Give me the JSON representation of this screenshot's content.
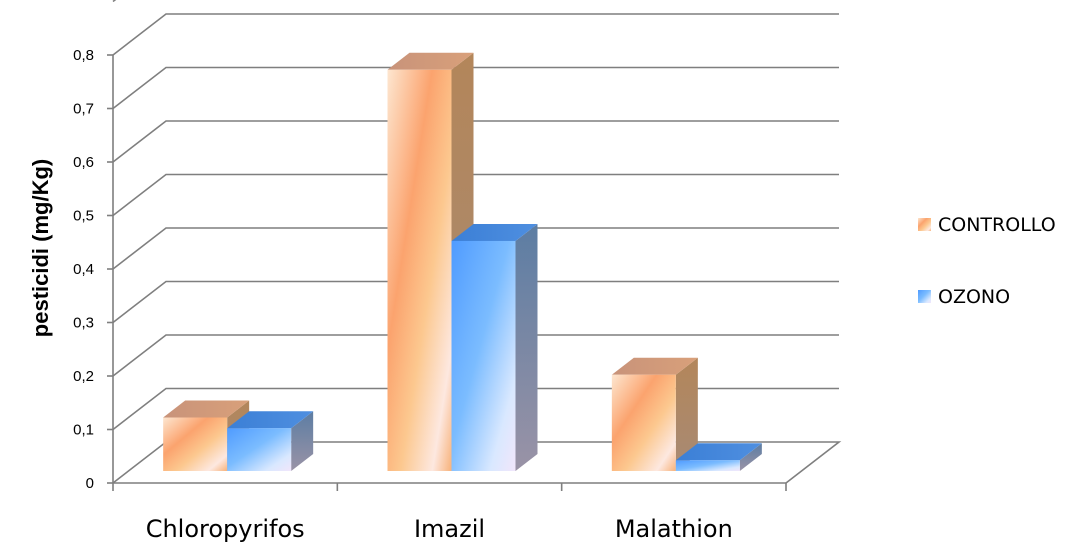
{
  "chart_data": {
    "type": "bar",
    "ylabel": "pesticidi (mg/Kg)",
    "ylim": [
      0,
      0.8
    ],
    "yticks": [
      "0",
      "0,1",
      "0,2",
      "0,3",
      "0,4",
      "0,5",
      "0,6",
      "0,7",
      "0,8"
    ],
    "categories": [
      "Chloropyrifos",
      "Imazil",
      "Malathion"
    ],
    "series": [
      {
        "name": "CONTROLLO",
        "values": [
          0.1,
          0.75,
          0.18
        ],
        "color": "#f7a56b"
      },
      {
        "name": "OZONO",
        "values": [
          0.08,
          0.43,
          0.02
        ],
        "color": "#6cb3ff"
      }
    ],
    "legend_position": "right",
    "grid": true,
    "style": "3d-clustered-column"
  }
}
